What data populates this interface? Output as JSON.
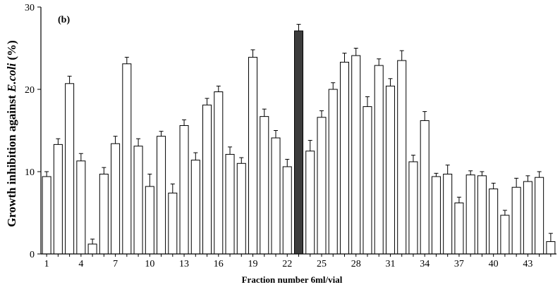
{
  "chart_data": {
    "type": "bar",
    "panel_label": "(b)",
    "xlabel": "Fraction number 6ml/vial",
    "ylabel_main": "Growth inhibition against ",
    "ylabel_italic": "E.coli",
    "ylabel_unit": " (%)",
    "ylim": [
      0,
      30
    ],
    "yticks": [
      0,
      10,
      20,
      30
    ],
    "xtick_labels": [
      "1",
      "4",
      "7",
      "10",
      "13",
      "16",
      "19",
      "22",
      "25",
      "28",
      "31",
      "34",
      "37",
      "40",
      "43"
    ],
    "xtick_positions": [
      1,
      4,
      7,
      10,
      13,
      16,
      19,
      22,
      25,
      28,
      31,
      34,
      37,
      40,
      43
    ],
    "highlighted_fraction": 23,
    "colors": {
      "bar": "#ffffff",
      "highlight": "#3c3c3c",
      "stroke": "#000000"
    },
    "categories": [
      1,
      2,
      3,
      4,
      5,
      6,
      7,
      8,
      9,
      10,
      11,
      12,
      13,
      14,
      15,
      16,
      17,
      18,
      19,
      20,
      21,
      22,
      23,
      24,
      25,
      26,
      27,
      28,
      29,
      30,
      31,
      32,
      33,
      34,
      35,
      36,
      37,
      38,
      39,
      40,
      41,
      42,
      43,
      44,
      45
    ],
    "values": [
      9.4,
      13.3,
      20.7,
      11.3,
      1.2,
      9.7,
      13.4,
      23.1,
      13.1,
      8.2,
      14.3,
      7.4,
      15.6,
      11.4,
      18.1,
      19.7,
      12.1,
      11.0,
      23.9,
      16.7,
      14.1,
      10.6,
      27.1,
      12.5,
      16.6,
      20.0,
      23.3,
      24.1,
      17.9,
      22.9,
      20.4,
      23.5,
      11.2,
      16.2,
      9.4,
      9.7,
      6.2,
      9.6,
      9.5,
      7.9,
      4.7,
      8.1,
      8.8,
      9.3,
      1.5
    ],
    "errors": [
      0.6,
      0.7,
      0.9,
      0.9,
      0.6,
      0.8,
      0.9,
      0.8,
      0.9,
      1.5,
      0.6,
      1.1,
      0.7,
      0.9,
      0.8,
      0.7,
      0.9,
      0.7,
      0.9,
      0.9,
      0.9,
      0.9,
      0.8,
      1.3,
      0.8,
      0.8,
      1.1,
      0.9,
      1.2,
      0.8,
      0.9,
      1.2,
      0.8,
      1.1,
      0.4,
      1.1,
      0.7,
      0.5,
      0.5,
      0.7,
      0.6,
      1.1,
      0.7,
      0.7,
      1.0
    ]
  }
}
